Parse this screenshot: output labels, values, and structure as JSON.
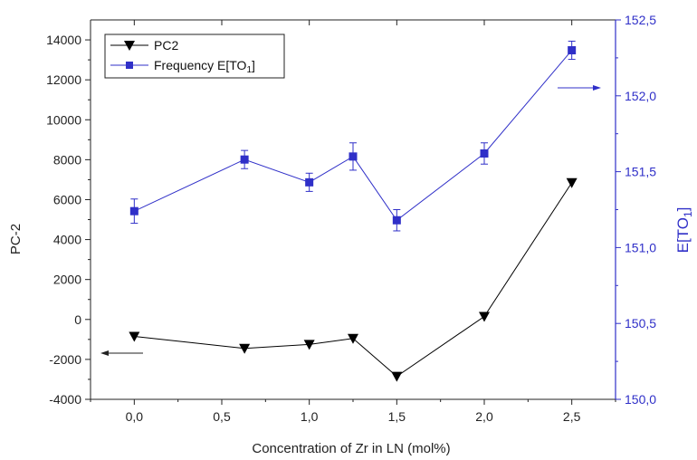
{
  "chart_data": {
    "type": "line",
    "xlabel": "Concentration of Zr in LN (mol%)",
    "ylabel_left": "PC-2",
    "ylabel_right": "E[TO",
    "ylabel_right_sub": "1",
    "ylabel_right_end": "]",
    "xlim": [
      -0.25,
      2.75
    ],
    "ylim_left": [
      -4000,
      15000
    ],
    "ylim_right": [
      150.0,
      152.5
    ],
    "x_ticks": [
      0.0,
      0.5,
      1.0,
      1.5,
      2.0,
      2.5
    ],
    "x_tick_labels": [
      "0,0",
      "0,5",
      "1,0",
      "1,5",
      "2,0",
      "2,5"
    ],
    "left_ticks": [
      -4000,
      -2000,
      0,
      2000,
      4000,
      6000,
      8000,
      10000,
      12000,
      14000
    ],
    "left_tick_labels": [
      "-4000",
      "-2000",
      "0",
      "2000",
      "4000",
      "6000",
      "8000",
      "10000",
      "12000",
      "14000"
    ],
    "right_ticks": [
      150.0,
      150.5,
      151.0,
      151.5,
      152.0,
      152.5
    ],
    "right_tick_labels": [
      "150,0",
      "150,5",
      "151,0",
      "151,5",
      "152,0",
      "152,5"
    ],
    "series": [
      {
        "name": "PC2",
        "axis": "left",
        "marker": "triangle-down",
        "color": "#000000",
        "x": [
          0.0,
          0.63,
          1.0,
          1.25,
          1.5,
          2.0,
          2.5
        ],
        "y": [
          -850,
          -1450,
          -1250,
          -950,
          -2850,
          150,
          6850
        ]
      },
      {
        "name": "Frequency E[TO",
        "name_sub": "1",
        "name_end": "]",
        "axis": "right",
        "marker": "square",
        "color": "#2f2fc8",
        "x": [
          0.0,
          0.63,
          1.0,
          1.25,
          1.5,
          2.0,
          2.5
        ],
        "y": [
          151.24,
          151.58,
          151.43,
          151.6,
          151.18,
          151.62,
          152.3
        ],
        "error": [
          0.08,
          0.06,
          0.06,
          0.09,
          0.07,
          0.07,
          0.06
        ]
      }
    ],
    "legend_position": "top-left",
    "annotations": [
      "arrow-left-axis",
      "arrow-right-axis"
    ]
  }
}
